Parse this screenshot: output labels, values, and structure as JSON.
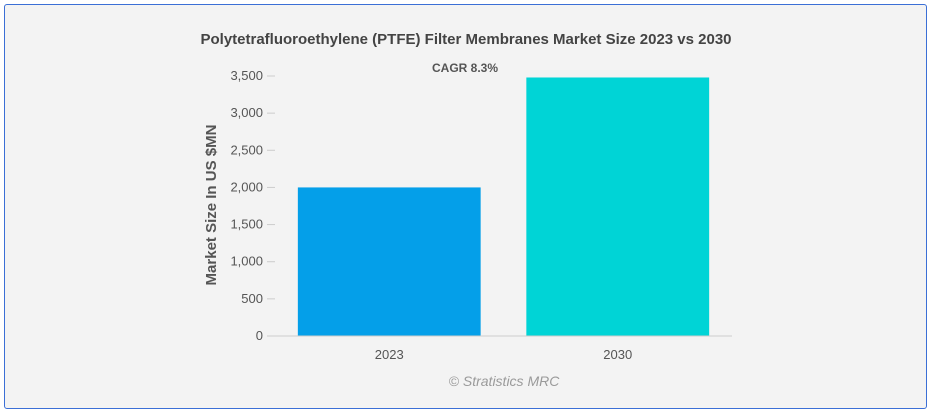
{
  "chart_data": {
    "type": "bar",
    "title": "Polytetrafluoroethylene (PTFE) Filter Membranes Market Size 2023 vs 2030",
    "annotation": "CAGR 8.3%",
    "ylabel": "Market Size In US $MN",
    "xlabel": "",
    "categories": [
      "2023",
      "2030"
    ],
    "values": [
      2000,
      3480
    ],
    "colors": [
      "#049fe9",
      "#00d4d6"
    ],
    "ylim": [
      0,
      3500
    ],
    "yticks": [
      0,
      500,
      1000,
      1500,
      2000,
      2500,
      3000,
      3500
    ],
    "ytick_labels": [
      "0",
      "500",
      "1,000",
      "1,500",
      "2,000",
      "2,500",
      "3,000",
      "3,500"
    ],
    "grid": false
  },
  "watermark": "© Stratistics MRC",
  "colors": {
    "frame_border": "#3b6fd6",
    "background": "#f3f3f3",
    "axis": "#cccccc"
  }
}
